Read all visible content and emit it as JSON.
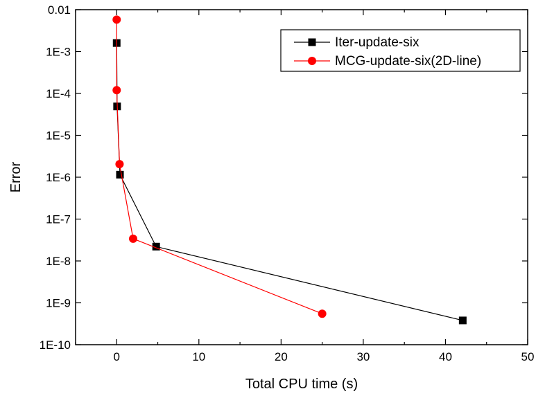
{
  "chart_data": {
    "type": "line",
    "xlabel": "Total CPU time (s)",
    "ylabel": "Error",
    "xlim": [
      -5,
      50
    ],
    "ylim": [
      1e-10,
      0.01
    ],
    "yscale": "log",
    "x_ticks": [
      0,
      10,
      20,
      30,
      40,
      50
    ],
    "x_tick_labels": [
      "0",
      "10",
      "20",
      "30",
      "40",
      "50"
    ],
    "y_ticks": [
      1e-10,
      1e-09,
      1e-08,
      1e-07,
      1e-06,
      1e-05,
      0.0001,
      0.001,
      0.01
    ],
    "y_tick_labels": [
      "1E-10",
      "1E-9",
      "1E-8",
      "1E-7",
      "1E-6",
      "1E-5",
      "1E-4",
      "1E-3",
      "0.01"
    ],
    "grid": false,
    "legend_position": "top-right",
    "series": [
      {
        "name": "Iter-update-six",
        "color": "#000000",
        "marker": "square",
        "x": [
          0.0,
          0.05,
          0.4,
          4.8,
          42.1
        ],
        "y": [
          0.0016,
          4.9e-05,
          1.15e-06,
          2.2e-08,
          3.8e-10
        ]
      },
      {
        "name": "MCG-update-six(2D-line)",
        "color": "#ff0000",
        "marker": "circle",
        "x": [
          0.0,
          0.0,
          0.35,
          2.0,
          25.0
        ],
        "y": [
          0.0058,
          0.00012,
          2.05e-06,
          3.4e-08,
          5.5e-10
        ]
      }
    ]
  }
}
